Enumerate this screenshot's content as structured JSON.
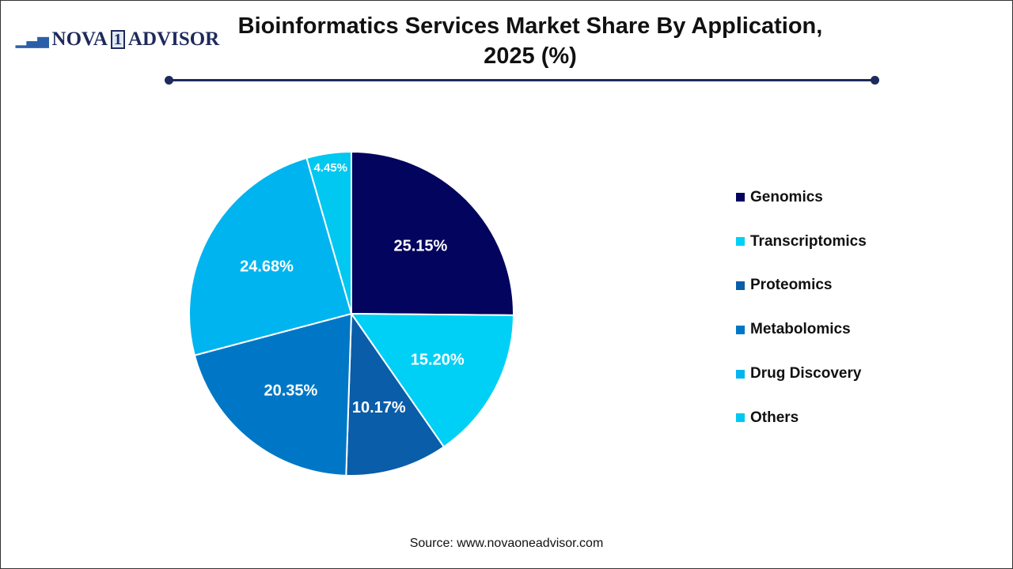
{
  "logo": {
    "text_a": "NOVA",
    "text_one": "1",
    "text_b": "ADVISOR"
  },
  "chart_data": {
    "type": "pie",
    "title": "Bioinformatics Services Market Share By Application, 2025 (%)",
    "categories": [
      "Genomics",
      "Transcriptomics",
      "Proteomics",
      "Metabolomics",
      "Drug Discovery",
      "Others"
    ],
    "values": [
      25.15,
      15.2,
      10.17,
      20.35,
      24.68,
      4.45
    ],
    "labels": [
      "25.15%",
      "15.20%",
      "10.17%",
      "20.35%",
      "24.68%",
      "4.45%"
    ],
    "colors": [
      "#03045e",
      "#00d0f5",
      "#0a5da8",
      "#0077c6",
      "#00b4ef",
      "#00c8f0"
    ],
    "start_angle": "top",
    "direction": "clockwise",
    "legend_position": "right"
  },
  "source": "Source: www.novaoneadvisor.com"
}
